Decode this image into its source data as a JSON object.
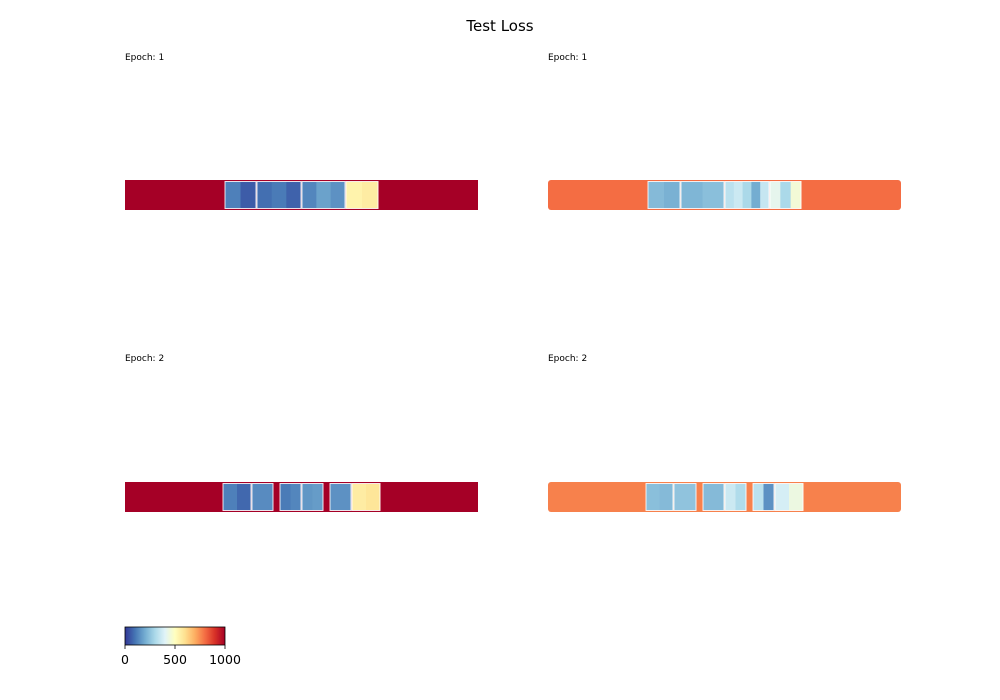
{
  "figure": {
    "title": "Test Loss"
  },
  "chart_data": {
    "type": "heatmap",
    "title": "Test Loss",
    "color_scale": {
      "colormap": "RdYlBu_r",
      "range": [
        0,
        1000
      ],
      "ticks": [
        "0",
        "500",
        "1000"
      ],
      "stops": [
        "#313695",
        "#4575b4",
        "#74add1",
        "#abd9e9",
        "#e0f3f8",
        "#ffffbf",
        "#fee090",
        "#fdae61",
        "#f46d43",
        "#d73027",
        "#a50026"
      ]
    },
    "panels": [
      {
        "label": "Epoch: 1",
        "background_value": 1000,
        "value_blocks": [
          {
            "values": [
              120,
              60
            ]
          },
          {
            "values": [
              90,
              110,
              70
            ]
          },
          {
            "values": [
              130,
              180,
              150
            ]
          },
          {
            "values": [
              540,
              560
            ]
          }
        ]
      },
      {
        "label": "Epoch: 1",
        "background_value": 800,
        "value_blocks": [
          {
            "values": [
              230,
              210
            ]
          },
          {
            "values": [
              220,
              240
            ]
          },
          {
            "values": [
              330,
              360,
              300,
              200,
              350
            ]
          },
          {
            "values": [
              420,
              300,
              460
            ]
          }
        ]
      },
      {
        "label": "Epoch: 2",
        "background_value": 1000,
        "value_blocks": [
          {
            "values": [
              120,
              80
            ]
          },
          {
            "values": [
              140
            ]
          },
          {
            "values": [
              110,
              130
            ]
          },
          {
            "values": [
              160,
              170
            ]
          },
          {
            "values": [
              150
            ]
          },
          {
            "values": [
              560,
              580
            ]
          }
        ]
      },
      {
        "label": "Epoch: 2",
        "background_value": 770,
        "value_blocks": [
          {
            "values": [
              240,
              230
            ]
          },
          {
            "values": [
              250
            ]
          },
          {
            "values": [
              230
            ]
          },
          {
            "values": [
              360,
              310
            ]
          },
          {
            "values": [
              330,
              150
            ]
          },
          {
            "values": [
              380,
              440
            ]
          }
        ]
      }
    ]
  }
}
